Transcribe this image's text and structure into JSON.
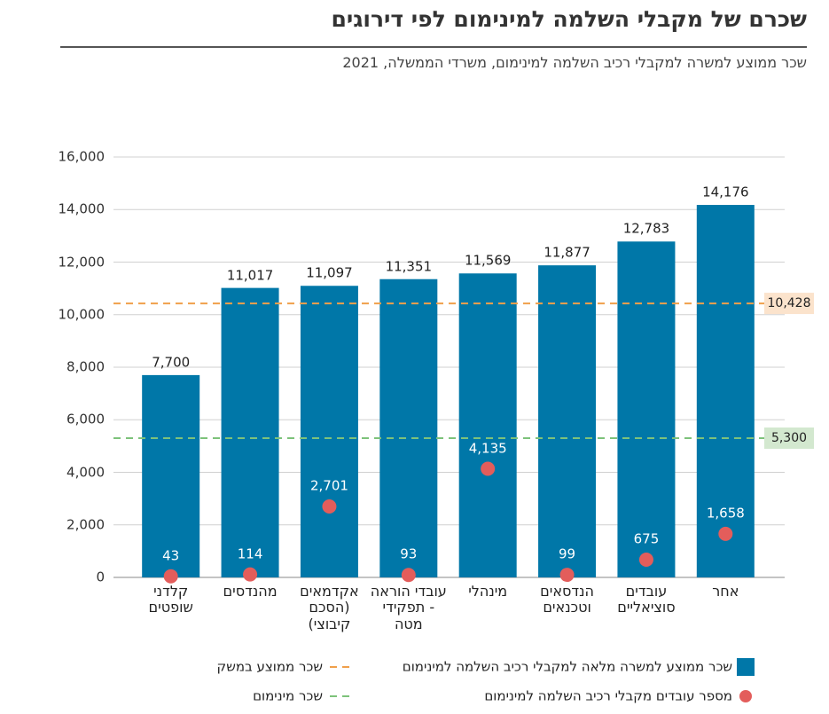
{
  "chart_data": {
    "type": "bar",
    "title": "שכרם של מקבלי השלמה למינימום לפי דירוגים",
    "subtitle": "שכר ממוצע למשרה למקבלי רכיב השלמה למינימום, משרדי הממשלה, 2021",
    "categories": [
      "קלדני\nשופטים",
      "מהנדסים",
      "אקדמאים\n(הסכם\nקיבוצי)",
      "עובדי הוראה\n- תפקידי\nמטה",
      "מינהלי",
      "הנדסאים\nוטכנאים",
      "עובדים\nסוציאליים",
      "אחר"
    ],
    "series": [
      {
        "name": "שכר ממוצע למשרה מלאה למקבלי רכיב השלמה למינימום",
        "type": "bar",
        "color": "#0077a8",
        "values": [
          7700,
          11017,
          11097,
          11351,
          11569,
          11877,
          12783,
          14176
        ],
        "value_labels": [
          "7,700",
          "11,017",
          "11,097",
          "11,351",
          "11,569",
          "11,877",
          "12,783",
          "14,176"
        ]
      },
      {
        "name": "מספר עובדים מקבלי רכיב השלמה למינימום",
        "type": "scatter",
        "color": "#e35d5b",
        "values": [
          43,
          114,
          2701,
          93,
          4135,
          99,
          675,
          1658
        ],
        "value_labels": [
          "43",
          "114",
          "2,701",
          "93",
          "4,135",
          "99",
          "675",
          "1,658"
        ]
      }
    ],
    "reference_lines": [
      {
        "name": "שכר ממוצע במשק",
        "value": 10428,
        "label": "10,428",
        "color": "#f0a04b",
        "box_color": "#fbe3cc"
      },
      {
        "name": "שכר מינימום",
        "value": 5300,
        "label": "5,300",
        "color": "#7dc27a",
        "box_color": "#d3e8cf"
      }
    ],
    "ylim": [
      0,
      16000
    ],
    "yticks": [
      0,
      {
        "value": 2000,
        "label": "2,000"
      },
      {
        "value": 4000,
        "label": "4,000"
      },
      {
        "value": 6000,
        "label": "6,000"
      },
      {
        "value": 8000,
        "label": "8,000"
      },
      {
        "value": 10000,
        "label": "10,000"
      },
      {
        "value": 12000,
        "label": "12,000"
      },
      {
        "value": 14000,
        "label": "14,000"
      },
      {
        "value": 16000,
        "label": "16,000"
      }
    ],
    "grid": true
  }
}
